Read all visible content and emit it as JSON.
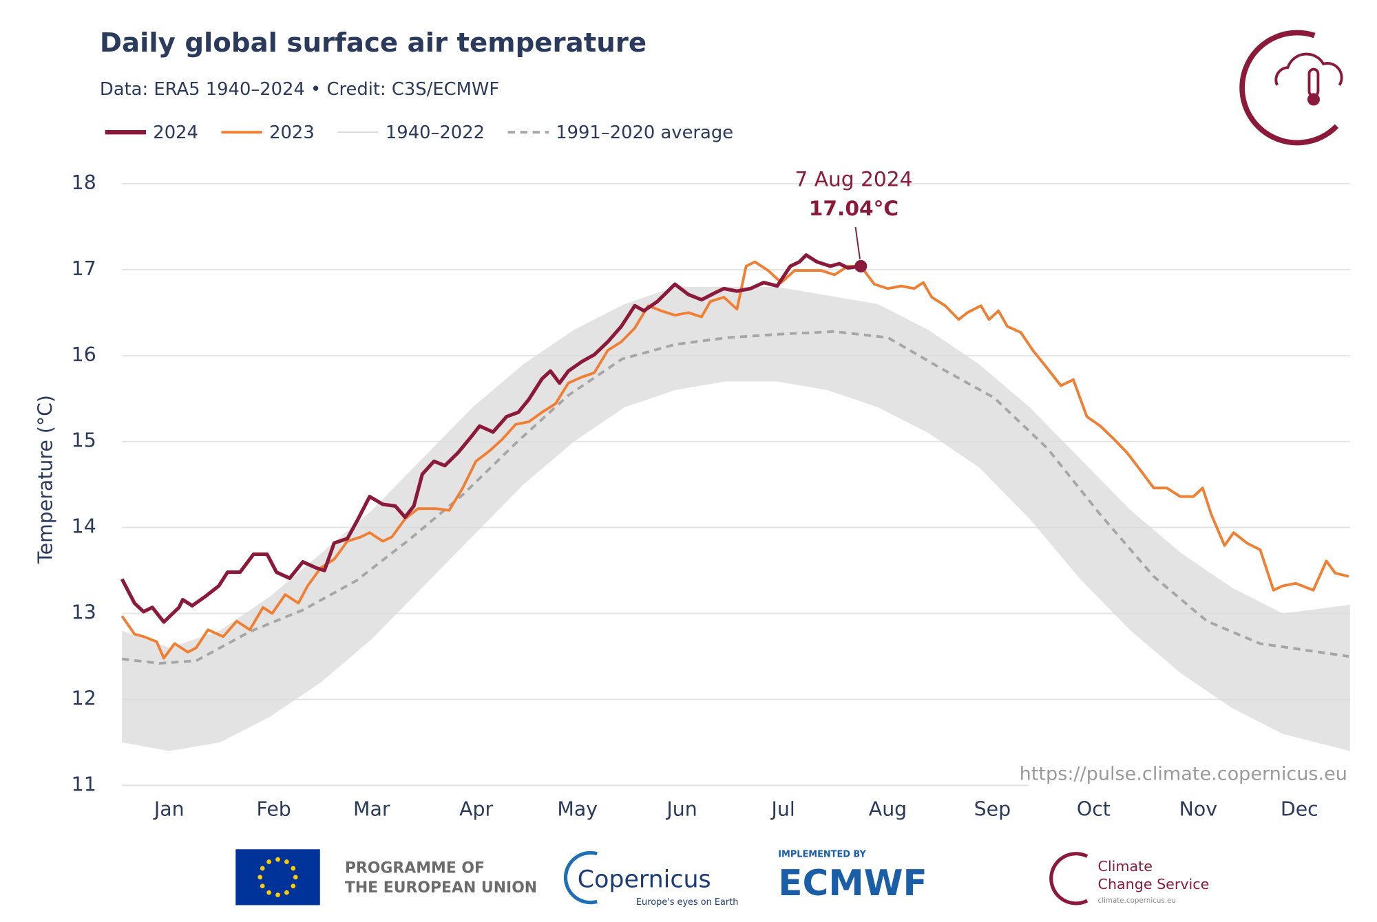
{
  "chart_data": {
    "type": "line",
    "title": "Daily global surface air temperature",
    "subtitle": "Data: ERA5 1940–2024  •  Credit: C3S/ECMWF",
    "y_label": "Temperature (°C)",
    "source": "https://pulse.climate.copernicus.eu",
    "xlim": [
      1,
      365
    ],
    "ylim": [
      11,
      18
    ],
    "yticks": [
      11,
      12,
      13,
      14,
      15,
      16,
      17,
      18
    ],
    "xticks": [
      {
        "value": 15,
        "label": "Jan"
      },
      {
        "value": 46,
        "label": "Feb"
      },
      {
        "value": 75,
        "label": "Mar"
      },
      {
        "value": 106,
        "label": "Apr"
      },
      {
        "value": 136,
        "label": "May"
      },
      {
        "value": 167,
        "label": "Jun"
      },
      {
        "value": 197,
        "label": "Jul"
      },
      {
        "value": 228,
        "label": "Aug"
      },
      {
        "value": 259,
        "label": "Sep"
      },
      {
        "value": 289,
        "label": "Oct"
      },
      {
        "value": 320,
        "label": "Nov"
      },
      {
        "value": 350,
        "label": "Dec"
      }
    ],
    "grid": true,
    "series": [
      {
        "name": "2024",
        "color": "#8b1a3a",
        "x": [
          1,
          4.7,
          7.4,
          10,
          13.4,
          17.9,
          19,
          21.8,
          25.8,
          29.7,
          32.3,
          36,
          40,
          44,
          46.8,
          50.7,
          54.6,
          58.6,
          61,
          63.9,
          67.8,
          71,
          74.4,
          78.3,
          82,
          84.9,
          87.5,
          90,
          93.5,
          96.7,
          100.6,
          104.6,
          107,
          111,
          115,
          118.5,
          121.6,
          125.5,
          128,
          130.7,
          133.3,
          137.3,
          141,
          145,
          149,
          153,
          155.7,
          159.7,
          164.9,
          168.9,
          172.8,
          176.8,
          179.4,
          183.3,
          187.3,
          191.2,
          195.2,
          199.1,
          201.8,
          203.8,
          207,
          211,
          213.6,
          216.2,
          220
        ],
        "values": [
          13.4,
          13.12,
          13.02,
          13.07,
          12.9,
          13.07,
          13.16,
          13.09,
          13.2,
          13.32,
          13.48,
          13.48,
          13.69,
          13.69,
          13.48,
          13.41,
          13.6,
          13.53,
          13.5,
          13.82,
          13.87,
          14.1,
          14.36,
          14.27,
          14.25,
          14.12,
          14.25,
          14.62,
          14.77,
          14.72,
          14.87,
          15.06,
          15.18,
          15.11,
          15.29,
          15.34,
          15.49,
          15.73,
          15.82,
          15.68,
          15.82,
          15.93,
          16.01,
          16.16,
          16.34,
          16.58,
          16.52,
          16.63,
          16.83,
          16.71,
          16.65,
          16.73,
          16.78,
          16.75,
          16.78,
          16.85,
          16.81,
          17.04,
          17.09,
          17.17,
          17.09,
          17.04,
          17.07,
          17.02,
          17.04
        ]
      },
      {
        "name": "2023",
        "color": "#f07f33",
        "x": [
          1,
          4.7,
          7.4,
          11.3,
          13.4,
          16.6,
          20.5,
          23,
          26.5,
          31,
          35,
          38.9,
          42.8,
          45.5,
          49.4,
          53.3,
          56,
          59.9,
          63.9,
          67.8,
          71.8,
          74.4,
          78.3,
          81,
          84.9,
          88.8,
          94,
          98,
          102,
          105.9,
          109.9,
          113.8,
          117.7,
          121.6,
          125.5,
          129.5,
          133.3,
          137.3,
          141,
          145,
          149,
          153,
          157,
          160.9,
          164.9,
          168.9,
          172.8,
          175.4,
          179.4,
          183.3,
          186,
          188.6,
          192.5,
          196.4,
          200.4,
          204.3,
          208.3,
          212.2,
          216.2,
          220,
          224,
          228,
          232,
          235.8,
          238.5,
          241,
          245,
          249,
          251.6,
          255.6,
          258,
          260.8,
          263.4,
          267.4,
          271,
          275.3,
          279.3,
          283,
          287,
          291,
          295,
          298.9,
          302.8,
          306.8,
          310.7,
          314.7,
          318.6,
          321.3,
          323.9,
          327.8,
          330.5,
          334.4,
          338.4,
          342.3,
          345,
          348.9,
          354.1,
          358,
          360.6,
          364.6
        ],
        "values": [
          12.97,
          12.76,
          12.73,
          12.67,
          12.48,
          12.65,
          12.55,
          12.6,
          12.81,
          12.73,
          12.91,
          12.81,
          13.07,
          13.0,
          13.22,
          13.12,
          13.32,
          13.53,
          13.63,
          13.84,
          13.89,
          13.94,
          13.84,
          13.89,
          14.1,
          14.22,
          14.22,
          14.2,
          14.46,
          14.77,
          14.89,
          15.03,
          15.2,
          15.23,
          15.34,
          15.44,
          15.68,
          15.75,
          15.8,
          16.06,
          16.16,
          16.32,
          16.58,
          16.52,
          16.47,
          16.5,
          16.45,
          16.63,
          16.68,
          16.54,
          17.04,
          17.09,
          16.99,
          16.85,
          16.99,
          16.99,
          16.99,
          16.94,
          17.04,
          17.04,
          16.83,
          16.78,
          16.81,
          16.78,
          16.85,
          16.68,
          16.58,
          16.42,
          16.5,
          16.58,
          16.42,
          16.52,
          16.34,
          16.27,
          16.06,
          15.85,
          15.65,
          15.72,
          15.29,
          15.18,
          15.03,
          14.87,
          14.67,
          14.46,
          14.46,
          14.36,
          14.36,
          14.46,
          14.15,
          13.79,
          13.94,
          13.82,
          13.74,
          13.27,
          13.32,
          13.35,
          13.27,
          13.61,
          13.47,
          13.43
        ]
      },
      {
        "name": "1940–2022",
        "color": "#d9d9d9",
        "style": "band",
        "x": [
          1,
          15,
          30,
          45,
          60,
          75,
          90,
          105,
          120,
          135,
          150,
          165,
          180,
          195,
          210,
          225,
          240,
          255,
          270,
          285,
          300,
          315,
          330,
          345,
          365
        ],
        "lower": [
          11.5,
          11.4,
          11.5,
          11.8,
          12.2,
          12.7,
          13.3,
          13.9,
          14.5,
          15.0,
          15.4,
          15.6,
          15.7,
          15.7,
          15.6,
          15.4,
          15.1,
          14.7,
          14.1,
          13.4,
          12.8,
          12.3,
          11.9,
          11.6,
          11.4
        ],
        "upper": [
          12.8,
          12.6,
          12.8,
          13.2,
          13.7,
          14.2,
          14.8,
          15.4,
          15.9,
          16.3,
          16.6,
          16.8,
          16.8,
          16.8,
          16.7,
          16.6,
          16.3,
          15.9,
          15.4,
          14.8,
          14.2,
          13.7,
          13.3,
          13.0,
          13.1
        ]
      },
      {
        "name": "1991–2020 average",
        "color": "#a6a6a6",
        "dash": true,
        "x": [
          1,
          12,
          23,
          39,
          54.6,
          70.4,
          86.2,
          102,
          117.7,
          133.4,
          149.2,
          165,
          180.7,
          196.5,
          212.2,
          228,
          243.8,
          259.5,
          275.3,
          291,
          306.8,
          322.6,
          338.3,
          364.6
        ],
        "values": [
          12.47,
          12.42,
          12.45,
          12.79,
          13.04,
          13.38,
          13.86,
          14.38,
          14.98,
          15.54,
          15.96,
          16.13,
          16.21,
          16.25,
          16.28,
          16.21,
          15.85,
          15.51,
          14.92,
          14.15,
          13.43,
          12.91,
          12.65,
          12.5
        ]
      }
    ],
    "annotation": {
      "label": "7 Aug 2024",
      "x": 220,
      "value": 17.04,
      "value_label": "17.04°C",
      "color": "#8b1a3a"
    }
  },
  "footer": {
    "eu": [
      "PROGRAMME OF",
      "THE EUROPEAN UNION"
    ],
    "copernicus": "Copernicus",
    "copernicus_tagline": "Europe's eyes on Earth",
    "ecmwf_prefix": "IMPLEMENTED BY",
    "ecmwf": "ECMWF",
    "c3s": [
      "Climate",
      "Change Service"
    ],
    "c3s_url": "climate.copernicus.eu"
  }
}
